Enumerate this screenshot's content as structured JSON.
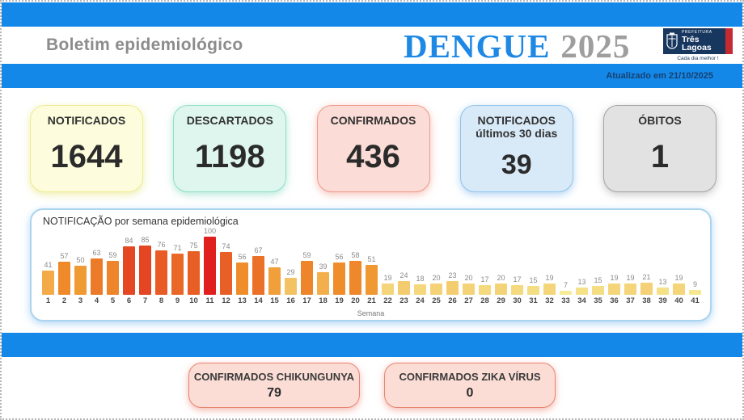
{
  "header": {
    "bulletin_title": "Boletim epidemiológico",
    "disease": "DENGUE",
    "year": "2025",
    "updated_text": "Atualizado em 21/10/2025",
    "logo": {
      "org_small": "PREFEITURA",
      "line1": "Três",
      "line2": "Lagoas",
      "slogan": "Cada dia melhor !"
    },
    "accent_blue": "#1488E9"
  },
  "stat_cards": [
    {
      "label": "NOTIFICADOS",
      "sublabel": "",
      "value": "1644",
      "bg": "#FDFCDC",
      "border": "#EDEB90",
      "glow": "rgba(228,226,120,0.6)"
    },
    {
      "label": "DESCARTADOS",
      "sublabel": "",
      "value": "1198",
      "bg": "#DEF6ED",
      "border": "#8EDFC9",
      "glow": "rgba(120,214,186,0.55)"
    },
    {
      "label": "CONFIRMADOS",
      "sublabel": "",
      "value": "436",
      "bg": "#FBDCD6",
      "border": "#F0998B",
      "glow": "rgba(238,148,130,0.55)"
    },
    {
      "label": "NOTIFICADOS",
      "sublabel": "últimos 30 dias",
      "value": "39",
      "bg": "#D8EAF8",
      "border": "#8FC4EC",
      "glow": "rgba(130,185,235,0.6)"
    },
    {
      "label": "ÓBITOS",
      "sublabel": "",
      "value": "1",
      "bg": "#E2E2E2",
      "border": "#A3A3A3",
      "glow": "rgba(150,150,150,0.5)"
    }
  ],
  "chart_data": {
    "type": "bar",
    "title": "NOTIFICAÇÃO por semana epidemiológica",
    "xlabel": "Semana",
    "ylabel": "",
    "ylim": [
      0,
      100
    ],
    "grid": false,
    "categories": [
      1,
      2,
      3,
      4,
      5,
      6,
      7,
      8,
      9,
      10,
      11,
      12,
      13,
      14,
      15,
      16,
      17,
      18,
      19,
      20,
      21,
      22,
      23,
      24,
      25,
      26,
      27,
      28,
      29,
      30,
      31,
      32,
      33,
      34,
      35,
      36,
      37,
      38,
      39,
      40,
      41
    ],
    "values": [
      41,
      57,
      50,
      63,
      59,
      84,
      85,
      76,
      71,
      75,
      100,
      74,
      56,
      67,
      47,
      29,
      59,
      39,
      56,
      58,
      51,
      19,
      24,
      18,
      20,
      23,
      20,
      17,
      20,
      17,
      15,
      19,
      7,
      13,
      15,
      19,
      19,
      21,
      13,
      19,
      9
    ],
    "color_scale": [
      {
        "value": 7,
        "color": "#F6EC96"
      },
      {
        "value": 53,
        "color": "#F0942C"
      },
      {
        "value": 100,
        "color": "#DF201E"
      }
    ]
  },
  "bottom_cards": {
    "bg": "#FBDDD6",
    "border": "#E8836F",
    "items": [
      {
        "label": "CONFIRMADOS CHIKUNGUNYA",
        "value": "79"
      },
      {
        "label": "CONFIRMADOS ZIKA VÍRUS",
        "value": "0"
      }
    ]
  }
}
